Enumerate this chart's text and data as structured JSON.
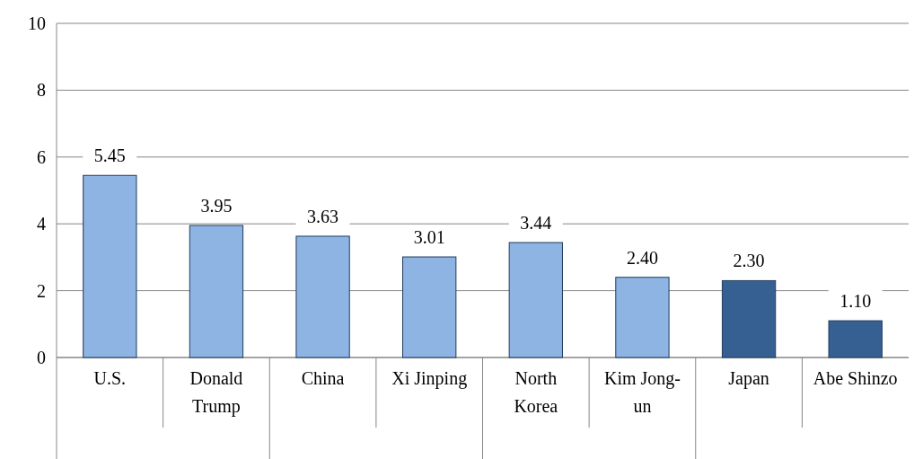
{
  "chart_data": {
    "type": "bar",
    "categories": [
      "U.S.",
      "Donald Trump",
      "China",
      "Xi Jinping",
      "North Korea",
      "Kim Jong-un",
      "Japan",
      "Abe Shinzo"
    ],
    "values": [
      5.45,
      3.95,
      3.63,
      3.01,
      3.44,
      2.4,
      2.3,
      1.1
    ],
    "value_labels": [
      "5.45",
      "3.95",
      "3.63",
      "3.01",
      "3.44",
      "2.40",
      "2.30",
      "1.10"
    ],
    "colors": [
      "#8eb4e3",
      "#8eb4e3",
      "#8eb4e3",
      "#8eb4e3",
      "#8eb4e3",
      "#8eb4e3",
      "#376092",
      "#376092"
    ],
    "ylim": [
      0,
      10
    ],
    "yticks": [
      0,
      2,
      4,
      6,
      8,
      10
    ],
    "grid": "y"
  }
}
